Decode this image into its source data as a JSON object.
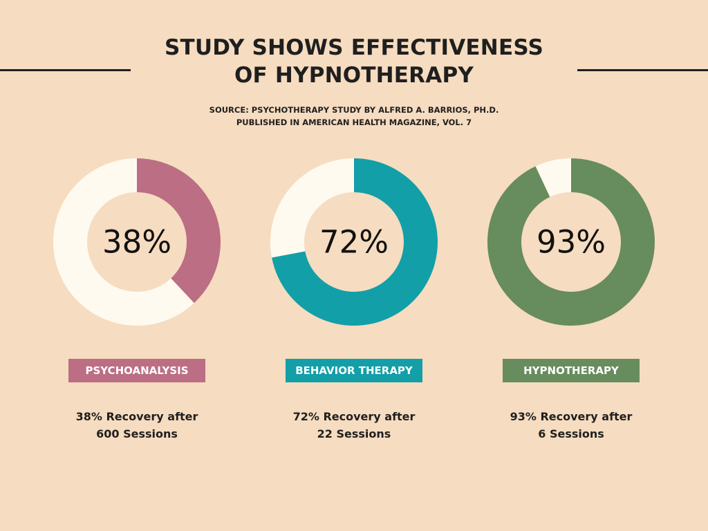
{
  "header": {
    "title_line1": "STUDY SHOWS EFFECTIVENESS",
    "title_line2": "OF HYPNOTHERAPY",
    "source_line1": "SOURCE: PSYCHOTHERAPY STUDY BY ALFRED A. BARRIOS, PH.D.",
    "source_line2": "PUBLISHED IN AMERICAN HEALTH MAGAZINE, VOL. 7"
  },
  "colors": {
    "background": "#f6dcc0",
    "track": "#fefaf0",
    "psychoanalysis": "#bb6e84",
    "behavior_therapy": "#129fa8",
    "hypnotherapy": "#678c5d"
  },
  "chart_data": {
    "type": "donut",
    "title": "STUDY SHOWS EFFECTIVENESS OF HYPNOTHERAPY",
    "unit": "% recovery",
    "series": [
      {
        "name": "PSYCHOANALYSIS",
        "value": 38,
        "value_label": "38%",
        "color": "#bb6e84",
        "desc_line1": "38% Recovery after",
        "desc_line2": "600 Sessions"
      },
      {
        "name": "BEHAVIOR THERAPY",
        "value": 72,
        "value_label": "72%",
        "color": "#129fa8",
        "desc_line1": "72% Recovery after",
        "desc_line2": "22 Sessions"
      },
      {
        "name": "HYPNOTHERAPY",
        "value": 93,
        "value_label": "93%",
        "color": "#678c5d",
        "desc_line1": "93% Recovery after",
        "desc_line2": "6 Sessions"
      }
    ]
  }
}
